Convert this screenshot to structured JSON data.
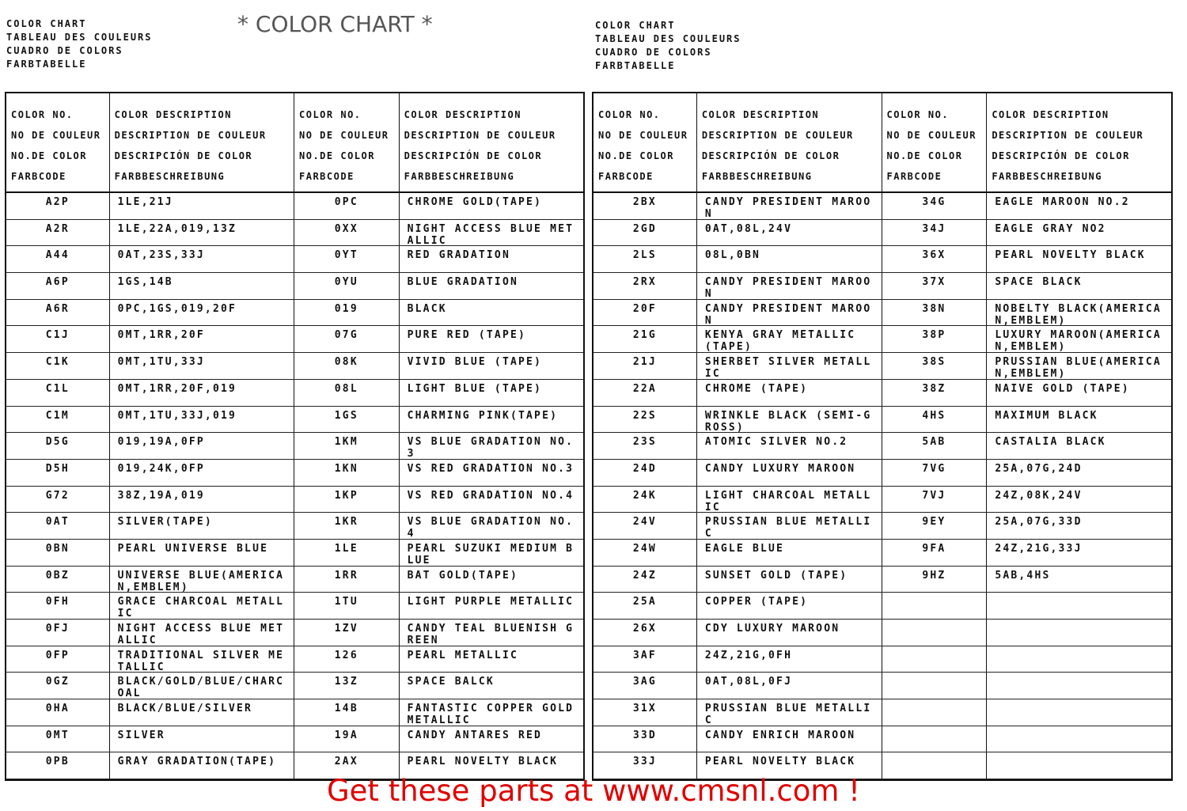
{
  "overlay_title": "* COLOR CHART *",
  "title_lines": [
    "COLOR CHART",
    "TABLEAU DES COULEURS",
    "CUADRO DE COLORS",
    "FARBTABELLE"
  ],
  "headers": {
    "code": [
      "COLOR NO.",
      "NO DE COULEUR",
      "NO.DE COLOR",
      "FARBCODE"
    ],
    "desc": [
      "COLOR DESCRIPTION",
      "DESCRIPTION DE COULEUR",
      "DESCRIPCIÓN DE COLOR",
      "FARBBESCHREIBUNG"
    ]
  },
  "pages": [
    {
      "columns": [
        {
          "rows": [
            [
              "A2P",
              "1LE,21J"
            ],
            [
              "A2R",
              "1LE,22A,019,13Z"
            ],
            [
              "A44",
              "0AT,23S,33J"
            ],
            [
              "A6P",
              "1GS,14B"
            ],
            [
              "A6R",
              "0PC,1GS,019,20F"
            ],
            [
              "C1J",
              "0MT,1RR,20F"
            ],
            [
              "C1K",
              "0MT,1TU,33J"
            ],
            [
              "C1L",
              "0MT,1RR,20F,019"
            ],
            [
              "C1M",
              "0MT,1TU,33J,019"
            ],
            [
              "D5G",
              "019,19A,0FP"
            ],
            [
              "D5H",
              "019,24K,0FP"
            ],
            [
              "G72",
              "38Z,19A,019"
            ],
            [
              "0AT",
              "SILVER(TAPE)"
            ],
            [
              "0BN",
              "PEARL UNIVERSE BLUE"
            ],
            [
              "0BZ",
              "UNIVERSE BLUE(AMERICA N,EMBLEM)"
            ],
            [
              "0FH",
              "GRACE CHARCOAL METALLIC"
            ],
            [
              "0FJ",
              "NIGHT ACCESS BLUE METALLIC"
            ],
            [
              "0FP",
              "TRADITIONAL SILVER METALLIC"
            ],
            [
              "0GZ",
              "BLACK/GOLD/BLUE/CHARCOAL"
            ],
            [
              "0HA",
              "BLACK/BLUE/SILVER"
            ],
            [
              "0MT",
              "SILVER"
            ],
            [
              "0PB",
              "GRAY GRADATION(TAPE)"
            ]
          ]
        },
        {
          "rows": [
            [
              "0PC",
              "CHROME GOLD(TAPE)"
            ],
            [
              "0XX",
              "NIGHT ACCESS BLUE METALLIC"
            ],
            [
              "0YT",
              "RED GRADATION"
            ],
            [
              "0YU",
              "BLUE GRADATION"
            ],
            [
              "019",
              "BLACK"
            ],
            [
              "07G",
              "PURE RED (TAPE)"
            ],
            [
              "08K",
              "VIVID BLUE (TAPE)"
            ],
            [
              "08L",
              "LIGHT BLUE (TAPE)"
            ],
            [
              "1GS",
              "CHARMING PINK(TAPE)"
            ],
            [
              "1KM",
              "VS BLUE GRADATION NO.3"
            ],
            [
              "1KN",
              "VS RED GRADATION NO.3"
            ],
            [
              "1KP",
              "VS RED GRADATION NO.4"
            ],
            [
              "1KR",
              "VS BLUE GRADATION NO.4"
            ],
            [
              "1LE",
              "PEARL SUZUKI MEDIUM BLUE"
            ],
            [
              "1RR",
              "BAT GOLD(TAPE)"
            ],
            [
              "1TU",
              "LIGHT PURPLE METALLIC"
            ],
            [
              "1ZV",
              "CANDY TEAL BLUENISH GREEN"
            ],
            [
              "126",
              "PEARL METALLIC"
            ],
            [
              "13Z",
              "SPACE BALCK"
            ],
            [
              "14B",
              "FANTASTIC COPPER GOLD METALLIC"
            ],
            [
              "19A",
              "CANDY ANTARES RED"
            ],
            [
              "2AX",
              "PEARL NOVELTY BLACK"
            ]
          ]
        }
      ]
    },
    {
      "columns": [
        {
          "rows": [
            [
              "2BX",
              "CANDY PRESIDENT MAROON"
            ],
            [
              "2GD",
              "0AT,08L,24V"
            ],
            [
              "2LS",
              "08L,0BN"
            ],
            [
              "2RX",
              "CANDY PRESIDENT MAROON"
            ],
            [
              "20F",
              "CANDY PRESIDENT MAROON"
            ],
            [
              "21G",
              "KENYA GRAY METALLIC (TAPE)"
            ],
            [
              "21J",
              "SHERBET SILVER METALLIC"
            ],
            [
              "22A",
              "CHROME (TAPE)"
            ],
            [
              "22S",
              "WRINKLE BLACK (SEMI-GROSS)"
            ],
            [
              "23S",
              "ATOMIC SILVER NO.2"
            ],
            [
              "24D",
              "CANDY LUXURY MAROON"
            ],
            [
              "24K",
              "LIGHT CHARCOAL METALLIC"
            ],
            [
              "24V",
              "PRUSSIAN BLUE METALLIC"
            ],
            [
              "24W",
              "EAGLE BLUE"
            ],
            [
              "24Z",
              "SUNSET GOLD (TAPE)"
            ],
            [
              "25A",
              "COPPER (TAPE)"
            ],
            [
              "26X",
              "CDY LUXURY MAROON"
            ],
            [
              "3AF",
              "24Z,21G,0FH"
            ],
            [
              "3AG",
              "0AT,08L,0FJ"
            ],
            [
              "31X",
              "PRUSSIAN BLUE METALLIC"
            ],
            [
              "33D",
              "CANDY ENRICH MAROON"
            ],
            [
              "33J",
              "PEARL NOVELTY BLACK"
            ]
          ]
        },
        {
          "rows": [
            [
              "34G",
              "EAGLE MAROON NO.2"
            ],
            [
              "34J",
              "EAGLE GRAY NO2"
            ],
            [
              "36X",
              "PEARL NOVELTY BLACK"
            ],
            [
              "37X",
              "SPACE BLACK"
            ],
            [
              "38N",
              "NOBELTY BLACK(AMERICA N,EMBLEM)"
            ],
            [
              "38P",
              "LUXURY MAROON(AMERICA N,EMBLEM)"
            ],
            [
              "38S",
              "PRUSSIAN BLUE(AMERICA N,EMBLEM)"
            ],
            [
              "38Z",
              "NAIVE GOLD (TAPE)"
            ],
            [
              "4HS",
              "MAXIMUM BLACK"
            ],
            [
              "5AB",
              "CASTALIA BLACK"
            ],
            [
              "7VG",
              "25A,07G,24D"
            ],
            [
              "7VJ",
              "24Z,08K,24V"
            ],
            [
              "9EY",
              "25A,07G,33D"
            ],
            [
              "9FA",
              "24Z,21G,33J"
            ],
            [
              "9HZ",
              "5AB,4HS"
            ],
            [
              "",
              ""
            ],
            [
              "",
              ""
            ],
            [
              "",
              ""
            ],
            [
              "",
              ""
            ],
            [
              "",
              ""
            ],
            [
              "",
              ""
            ],
            [
              "",
              ""
            ]
          ]
        }
      ]
    }
  ],
  "footer": "Get these parts at www.cmsnl.com !",
  "colors": {
    "footer": "#e00000",
    "overlay": "#555555"
  }
}
